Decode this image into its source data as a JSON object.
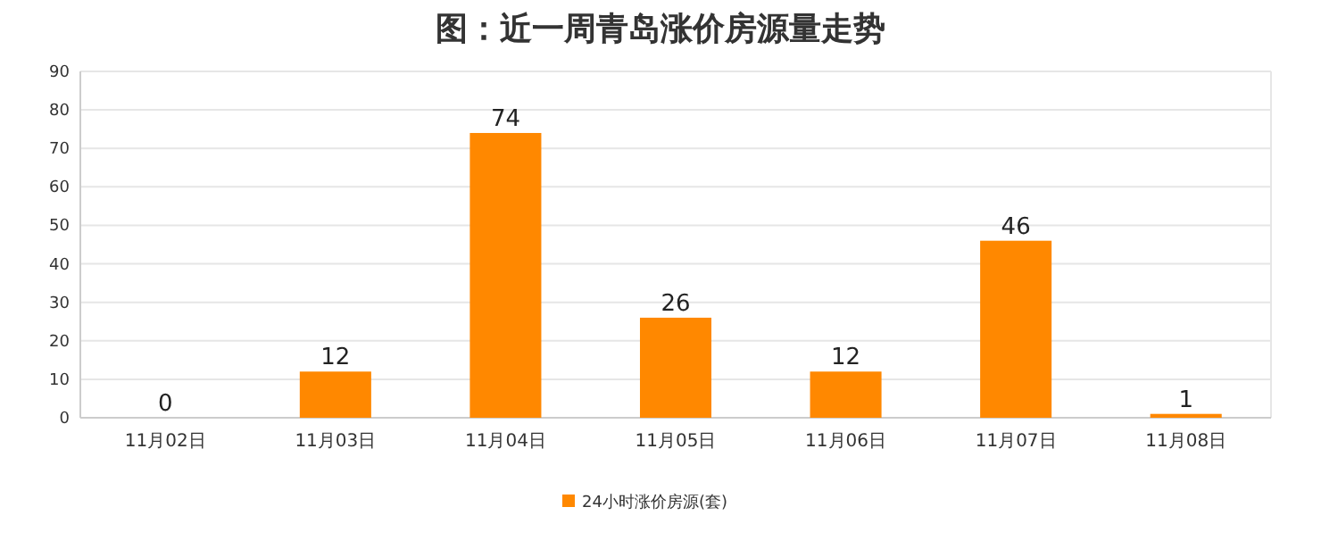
{
  "chart_data": {
    "type": "bar",
    "title": "图：近一周青岛涨价房源量走势",
    "categories": [
      "11月02日",
      "11月03日",
      "11月04日",
      "11月05日",
      "11月06日",
      "11月07日",
      "11月08日"
    ],
    "series": [
      {
        "name": "24小时涨价房源(套)",
        "color": "#ff8800",
        "values": [
          0,
          12,
          74,
          26,
          12,
          46,
          1
        ]
      }
    ],
    "ylim": [
      0,
      90
    ],
    "yticks": [
      0,
      10,
      20,
      30,
      40,
      50,
      60,
      70,
      80,
      90
    ],
    "grid": "y",
    "legend": "bottom",
    "data_labels": true
  }
}
